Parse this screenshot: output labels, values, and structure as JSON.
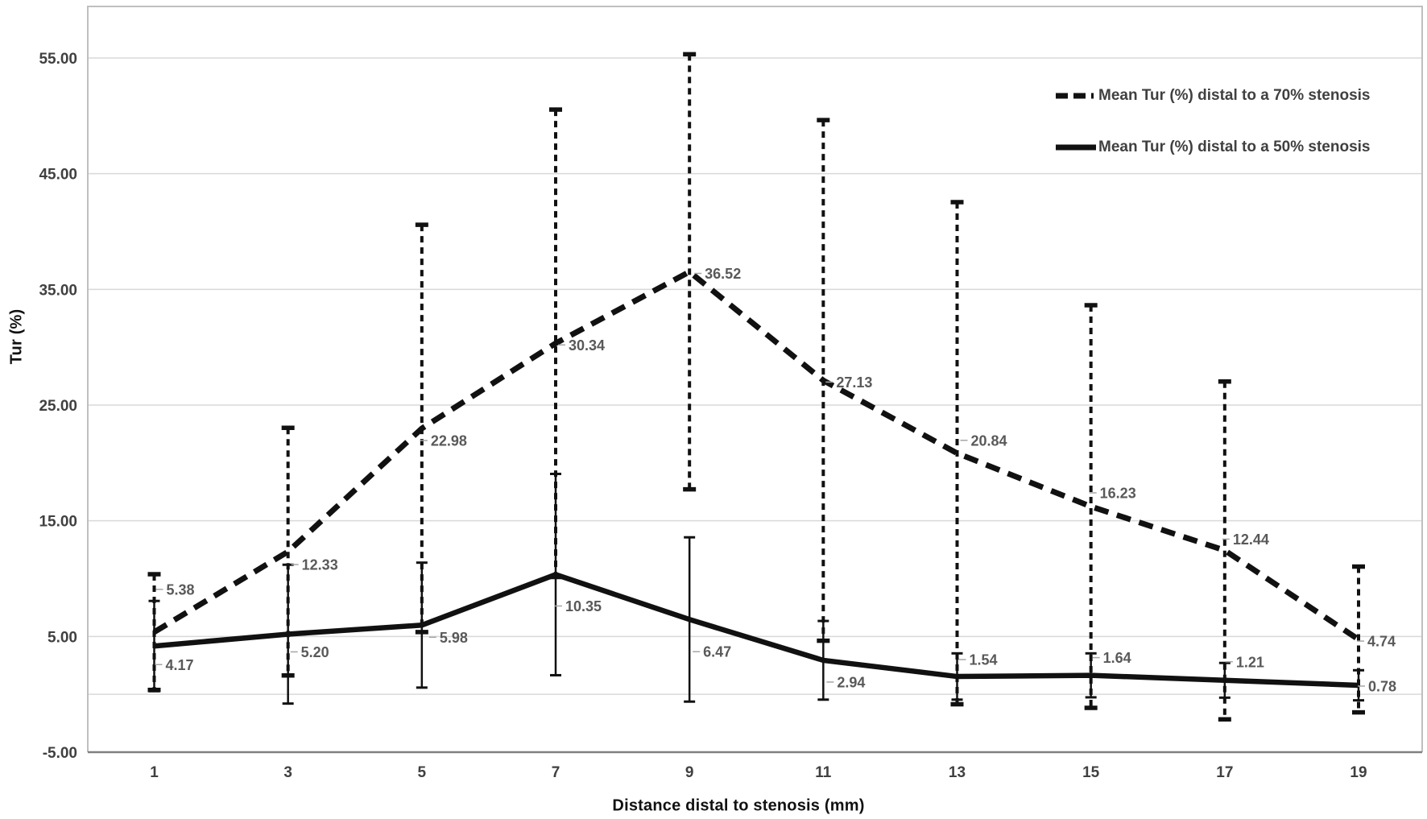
{
  "chart_data": {
    "type": "line",
    "title": "",
    "xlabel": "Distance distal to stenosis (mm)",
    "ylabel": "Tur (%)",
    "x_categories": [
      "1",
      "3",
      "5",
      "7",
      "9",
      "11",
      "13",
      "15",
      "17",
      "19"
    ],
    "y_tick_labels": [
      "55.00",
      "45.00",
      "35.00",
      "25.00",
      "15.00",
      "5.00",
      "-5.00"
    ],
    "y_tick_values": [
      55,
      45,
      35,
      25,
      15,
      5,
      -5
    ],
    "gridline_values": [
      55,
      45,
      35,
      25,
      15,
      5,
      0
    ],
    "ylim": [
      -5,
      59.5
    ],
    "grid": "horizontal",
    "legend_position": "inside-top-right",
    "series": [
      {
        "name": "Mean Tur (%) distal to a 70% stenosis",
        "line_style": "dashed",
        "values": [
          5.38,
          12.33,
          22.98,
          30.34,
          36.52,
          27.13,
          20.84,
          16.23,
          12.44,
          4.74
        ],
        "error": [
          5.0,
          10.7,
          17.6,
          20.2,
          18.8,
          22.5,
          21.7,
          17.4,
          14.6,
          6.3
        ],
        "labels": [
          "5.38",
          "12.33",
          "22.98",
          "30.34",
          "36.52",
          "27.13",
          "20.84",
          "16.23",
          "12.44",
          "4.74"
        ],
        "label_dx": [
          15,
          17,
          11,
          16,
          19,
          16,
          17,
          11,
          10,
          11
        ],
        "label_dy": [
          -53,
          16,
          15,
          2,
          2,
          2,
          -16,
          -17,
          -14,
          2
        ]
      },
      {
        "name": "Mean Tur (%) distal to a 50% stenosis",
        "line_style": "solid",
        "values": [
          4.17,
          5.2,
          5.98,
          10.35,
          6.47,
          2.94,
          1.54,
          1.64,
          1.21,
          0.78
        ],
        "error": [
          3.9,
          6.0,
          5.4,
          8.7,
          7.1,
          3.4,
          2.0,
          1.9,
          1.5,
          1.3
        ],
        "labels": [
          "4.17",
          "5.20",
          "5.98",
          "10.35",
          "6.47",
          "2.94",
          "1.54",
          "1.64",
          "1.21",
          "0.78"
        ],
        "label_dx": [
          14,
          16,
          22,
          12,
          17,
          17,
          15,
          15,
          14,
          12
        ],
        "label_dy": [
          23,
          22,
          15,
          39,
          40,
          27,
          -21,
          -22,
          -23,
          1
        ]
      }
    ],
    "colors": {
      "series": "#111111",
      "grid": "#d9d9d9",
      "zero_line": "#d9d9d9",
      "plot_border": "#bfbfbf",
      "x_axis": "#7f7f7f",
      "tick_text": "#404040",
      "data_label": "#595959",
      "leader": "#a6a6a6",
      "axis_title": "#111111",
      "legend_text": "#404040"
    }
  }
}
